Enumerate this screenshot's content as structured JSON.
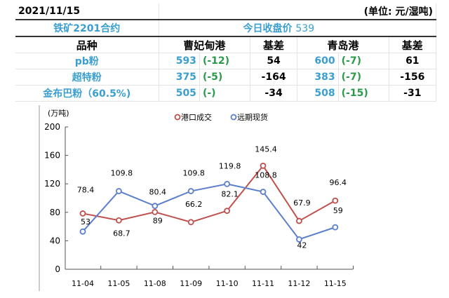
{
  "table": {
    "date": "2021/11/15",
    "unit": "(单位: 元/湿吨)",
    "contract": "铁矿2201合约",
    "close_label": "今日收盘价",
    "close_value": "539",
    "headers": [
      "品种",
      "曹妃甸港",
      "基差",
      "青岛港",
      "基差"
    ],
    "rows": [
      {
        "name": "pb粉",
        "cfd": "593",
        "cfd_chg": "(-12)",
        "cfd_basis": "54",
        "qd": "600",
        "qd_chg": "(-7)",
        "qd_basis": "61"
      },
      {
        "name": "超特粉",
        "cfd": "375",
        "cfd_chg": "(-5)",
        "cfd_basis": "-164",
        "qd": "383",
        "qd_chg": "(-7)",
        "qd_basis": "-156"
      },
      {
        "name": "金布巴粉（60.5%)",
        "cfd": "505",
        "cfd_chg": "(-)",
        "cfd_basis": "-34",
        "qd": "508",
        "qd_chg": "(-15)",
        "qd_basis": "-31"
      }
    ]
  },
  "chart_data": {
    "type": "line",
    "ylabel": "(万吨)",
    "ylim": [
      0,
      200
    ],
    "yticks": [
      0,
      40,
      80,
      120,
      160,
      200
    ],
    "categories": [
      "11-04",
      "11-05",
      "11-08",
      "11-09",
      "11-10",
      "11-11",
      "11-12",
      "11-15"
    ],
    "legend_position": "top",
    "series": [
      {
        "name": "港口成交",
        "color": "#c0504d",
        "values": [
          78.4,
          68.7,
          80.4,
          66.2,
          82.1,
          145.4,
          67.9,
          96.4
        ]
      },
      {
        "name": "远期现货",
        "color": "#5b7fcc",
        "values": [
          53,
          109.8,
          89,
          109.8,
          119.8,
          108.8,
          42,
          59
        ]
      }
    ]
  }
}
